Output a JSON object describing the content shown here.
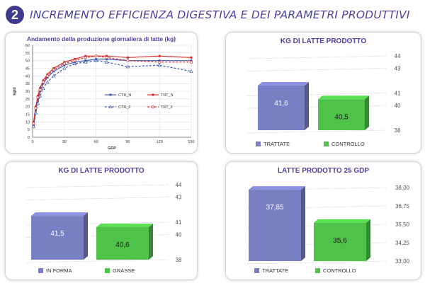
{
  "header": {
    "number": "2",
    "title": "INCREMENTO EFFICIENZA DIGESTIVA E DEI PARAMETRI PRODUTTIVI"
  },
  "colors": {
    "accent": "#4a42a0",
    "bar_blue": "#7a7fc4",
    "bar_green": "#4fc24a",
    "line_blue": "#3d5bb5",
    "line_red": "#d42a2a"
  },
  "chart_data": [
    {
      "type": "line",
      "title": "Andamento della produzione giornaliera di latte (kg)",
      "xlabel": "GDP",
      "ylabel": "kg/d",
      "xlim": [
        0,
        150
      ],
      "ylim": [
        0,
        60
      ],
      "xticks": [
        0,
        30,
        60,
        90,
        120,
        150
      ],
      "yticks": [
        0,
        5,
        10,
        15,
        20,
        25,
        30,
        35,
        40,
        45,
        50,
        55,
        60
      ],
      "grid": true,
      "legend": "center-right",
      "series": [
        {
          "name": "CTR_N",
          "x": [
            1,
            3,
            5,
            7,
            10,
            14,
            20,
            30,
            40,
            50,
            60,
            70,
            90,
            120,
            150
          ],
          "y": [
            8,
            18,
            25,
            30,
            35,
            39,
            43,
            47,
            49,
            50,
            51,
            51,
            50,
            50,
            50
          ]
        },
        {
          "name": "TRT_N",
          "x": [
            1,
            3,
            5,
            7,
            10,
            14,
            20,
            30,
            40,
            50,
            60,
            70,
            90,
            120,
            150
          ],
          "y": [
            10,
            20,
            27,
            32,
            37,
            41,
            45,
            49,
            51,
            53,
            53,
            53,
            52,
            53,
            52
          ]
        },
        {
          "name": "CTR_F",
          "x": [
            1,
            3,
            5,
            7,
            10,
            14,
            20,
            30,
            40,
            50,
            60,
            70,
            90,
            120,
            150
          ],
          "y": [
            7,
            16,
            22,
            27,
            32,
            36,
            40,
            45,
            48,
            49,
            50,
            49,
            46,
            47,
            43
          ]
        },
        {
          "name": "TRT_F",
          "x": [
            1,
            3,
            5,
            7,
            10,
            14,
            20,
            30,
            40,
            50,
            60,
            70,
            90,
            120,
            150
          ],
          "y": [
            9,
            19,
            26,
            31,
            36,
            40,
            44,
            48,
            50,
            52,
            53,
            52,
            50,
            49,
            49
          ]
        }
      ]
    },
    {
      "type": "bar",
      "title": "KG DI LATTE PRODOTTO",
      "categories": [
        "TRATTATE",
        "CONTROLLO"
      ],
      "values": [
        41.6,
        40.5
      ],
      "value_labels": [
        "41,6",
        "40,5"
      ],
      "yticks": [
        38,
        40,
        41,
        43,
        44
      ],
      "ytick_labels": [
        "38",
        "40",
        "41",
        "43",
        "44"
      ],
      "ylim": [
        38,
        44
      ],
      "legend": "bottom"
    },
    {
      "type": "bar",
      "title": "KG DI LATTE PRODOTTO",
      "categories": [
        "IN FORMA",
        "GRASSE"
      ],
      "values": [
        41.5,
        40.6
      ],
      "value_labels": [
        "41,5",
        "40,6"
      ],
      "yticks": [
        38,
        40,
        41,
        43,
        44
      ],
      "ytick_labels": [
        "38",
        "40",
        "41",
        "43",
        "44"
      ],
      "ylim": [
        38,
        44
      ],
      "legend": "bottom"
    },
    {
      "type": "bar",
      "title": "LATTE PRODOTTO 25 GDP",
      "categories": [
        "TRATTATE",
        "CONTROLLO"
      ],
      "values": [
        37.85,
        35.6
      ],
      "value_labels": [
        "37,85",
        "35,6"
      ],
      "yticks": [
        33.0,
        34.25,
        35.5,
        36.75,
        38.0
      ],
      "ytick_labels": [
        "33,00",
        "34,25",
        "35,50",
        "36,75",
        "38,00"
      ],
      "ylim": [
        33,
        38
      ],
      "legend": "bottom"
    }
  ]
}
